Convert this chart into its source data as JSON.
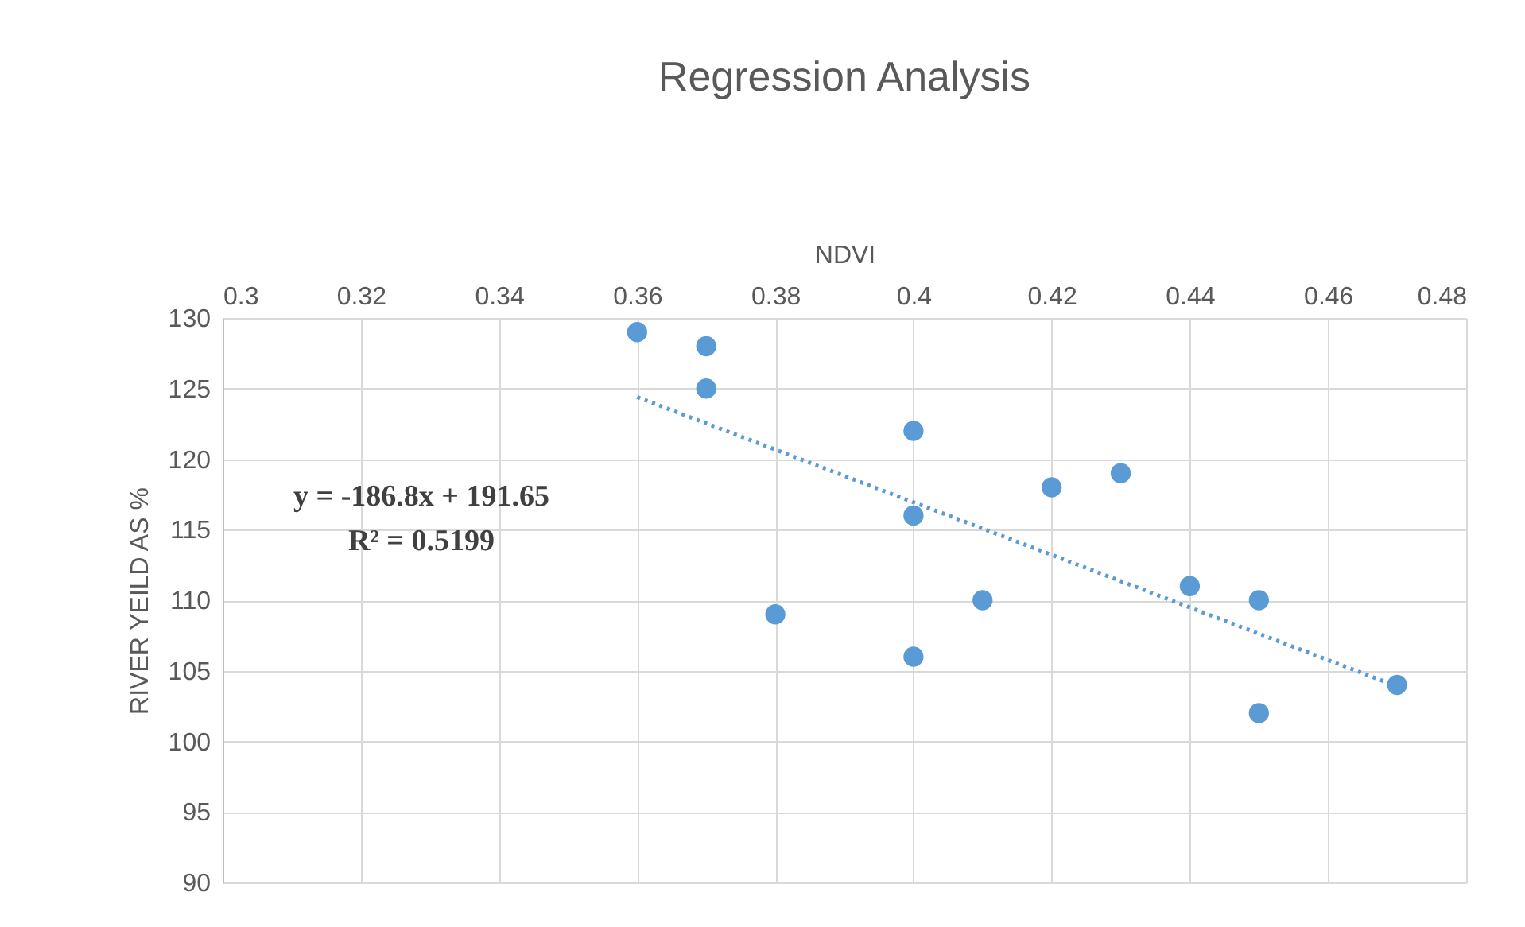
{
  "chart_data": {
    "type": "scatter",
    "title": "Regression Analysis",
    "xlabel": "NDVI",
    "ylabel": "RIVER YEILD AS %",
    "xlim": [
      0.3,
      0.48
    ],
    "xticks": [
      0.3,
      0.32,
      0.34,
      0.36,
      0.38,
      0.4,
      0.42,
      0.44,
      0.46,
      0.48
    ],
    "ylim": [
      90,
      130
    ],
    "yticks": [
      90,
      95,
      100,
      105,
      110,
      115,
      120,
      125,
      130
    ],
    "grid": true,
    "marker": "circle",
    "annotations": [
      "y = -186.8x + 191.65",
      "R² = 0.5199"
    ],
    "series": [
      {
        "color": "#5b9bd5",
        "x": [
          0.36,
          0.37,
          0.37,
          0.38,
          0.4,
          0.4,
          0.4,
          0.41,
          0.42,
          0.43,
          0.44,
          0.45,
          0.45,
          0.47
        ],
        "values": [
          129,
          128,
          125,
          109,
          122,
          116,
          106,
          110,
          118,
          119,
          111,
          110,
          102,
          104
        ]
      },
      {
        "type": "line",
        "color": "#5b9bd5",
        "line_style": "dotted",
        "marker": "none",
        "x": [
          0.36,
          0.47
        ],
        "values": [
          124.4,
          103.9
        ]
      }
    ]
  }
}
